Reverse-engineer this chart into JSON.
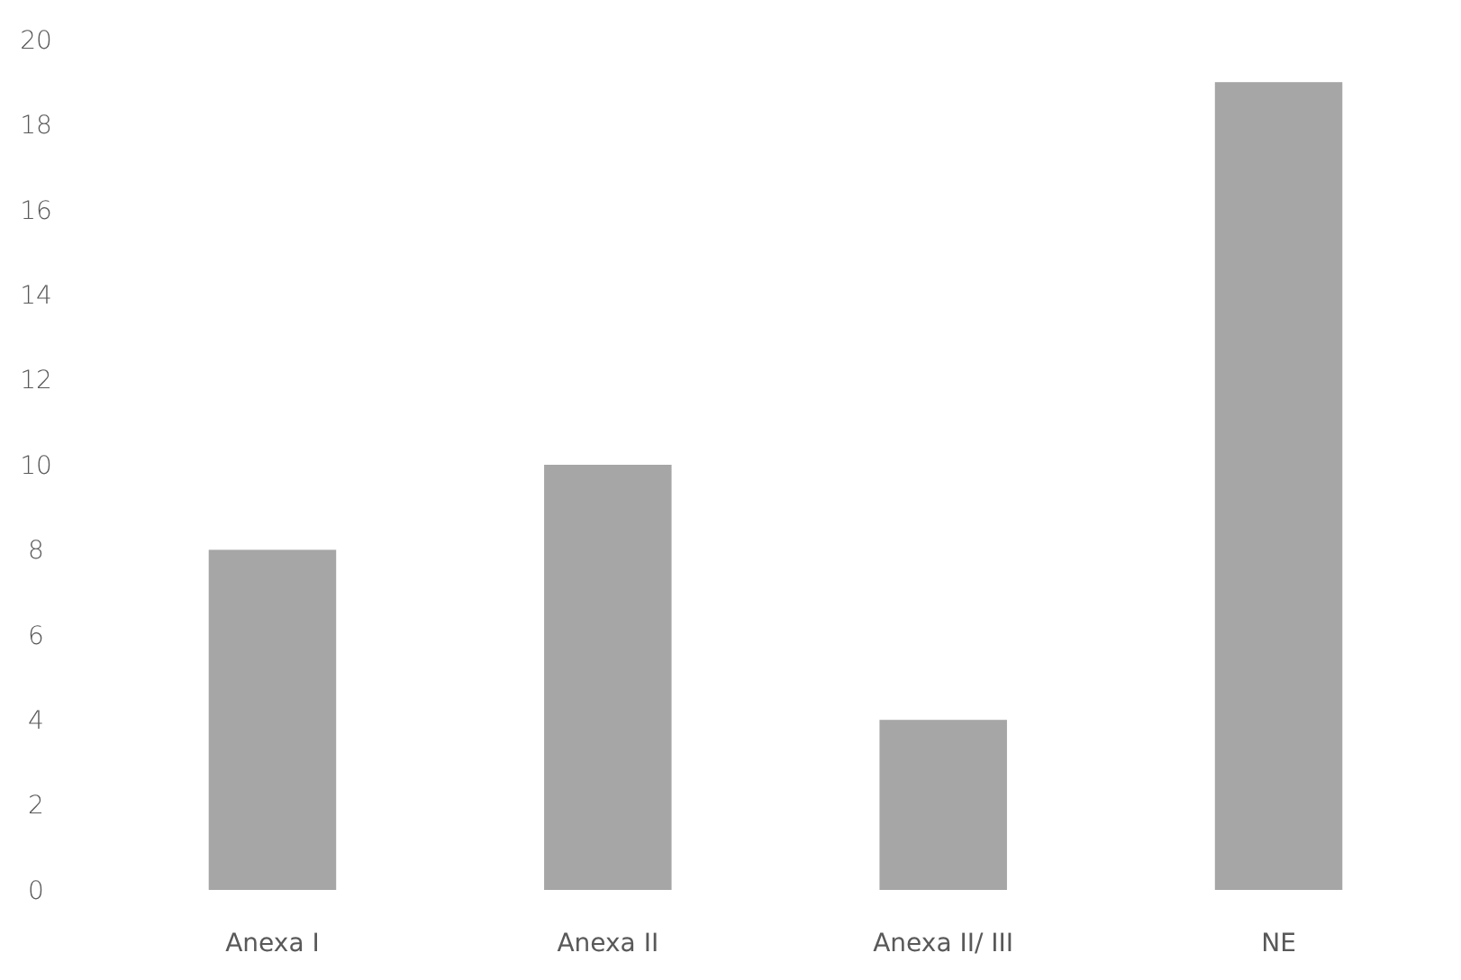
{
  "chart_data": {
    "type": "bar",
    "categories": [
      "Anexa I",
      "Anexa II",
      "Anexa II/ III",
      "NE"
    ],
    "values": [
      8,
      10,
      4,
      19
    ],
    "color": "#a6a6a6",
    "ylim": [
      0,
      20
    ],
    "yticks": [
      0,
      2,
      4,
      6,
      8,
      10,
      12,
      14,
      16,
      18,
      20
    ],
    "grid": false
  }
}
